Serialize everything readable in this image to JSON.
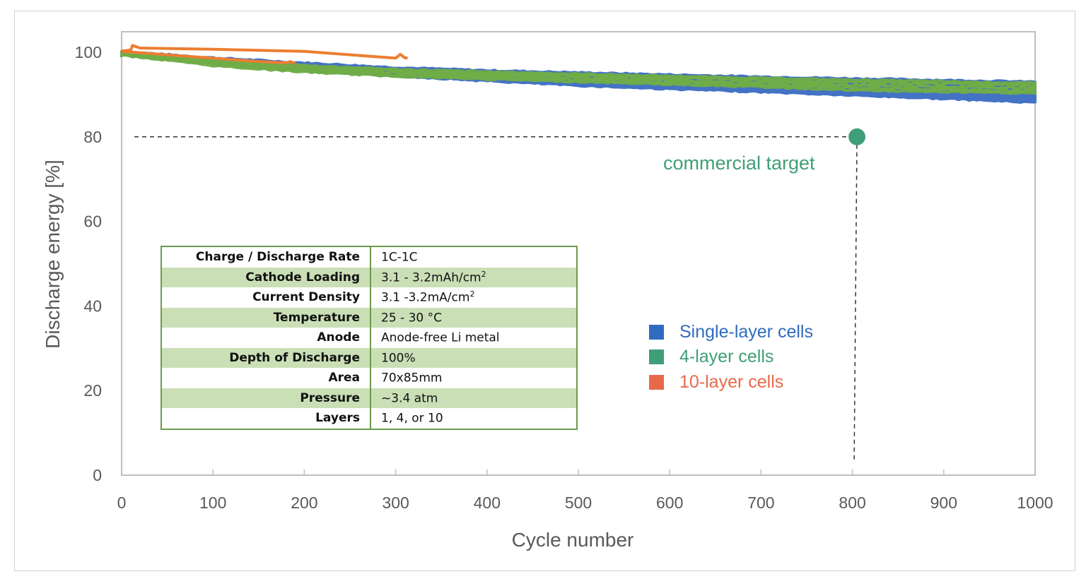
{
  "chart_data": {
    "type": "line",
    "xlabel": "Cycle number",
    "ylabel": "Discharge energy [%]",
    "xlim": [
      0,
      1000
    ],
    "ylim": [
      0,
      100
    ],
    "xticks": [
      0,
      100,
      200,
      300,
      400,
      500,
      600,
      700,
      800,
      900,
      1000
    ],
    "yticks": [
      0,
      20,
      40,
      60,
      80,
      100
    ],
    "grid": false,
    "legend_position": "right-center",
    "series": [
      {
        "name": "Single-layer cells",
        "color": "#4472c4",
        "legend_color": "#2f6cc0",
        "band": {
          "x": [
            0,
            100,
            200,
            300,
            400,
            500,
            600,
            700,
            800,
            900,
            1000
          ],
          "upper": [
            100,
            98.5,
            97.3,
            96.2,
            95.5,
            95,
            94.5,
            94,
            93.6,
            93.2,
            92.8
          ],
          "lower": [
            99.5,
            97.5,
            95.8,
            94.6,
            93.4,
            92.3,
            91.5,
            90.8,
            90,
            89.2,
            88.3
          ]
        }
      },
      {
        "name": "4-layer cells",
        "color": "#70ad47",
        "legend_color": "#3f9e78",
        "band": {
          "x": [
            0,
            100,
            200,
            300,
            400,
            500,
            600,
            700,
            800,
            900,
            1000
          ],
          "upper": [
            100,
            98,
            96.7,
            95.8,
            95.2,
            94.7,
            94.2,
            93.7,
            93.3,
            92.9,
            92.5
          ],
          "lower": [
            99.5,
            97,
            95.5,
            94.5,
            93.8,
            93.2,
            92.6,
            92,
            91.2,
            90.8,
            90.5
          ]
        }
      },
      {
        "name": "10-layer cells",
        "color": "#ed7d31",
        "legend_color": "#e8694a",
        "lines": [
          {
            "x": [
              0,
              10,
              12,
              20,
              100,
              200,
              300,
              305,
              310,
              313
            ],
            "y": [
              100.3,
              100.5,
              101.6,
              101.0,
              100.7,
              100.2,
              98.6,
              99.5,
              98.7,
              98.6
            ]
          },
          {
            "x": [
              0,
              50,
              100,
              150,
              180,
              185,
              190
            ],
            "y": [
              100.2,
              99.4,
              98.6,
              97.8,
              97.5,
              97.8,
              97.3
            ]
          }
        ]
      }
    ],
    "annotations": [
      {
        "text": "commercial target",
        "x": 805,
        "y": 80,
        "color": "#3f9e78",
        "marker": "circle",
        "dashed_guides": true
      }
    ]
  },
  "spec_table": [
    {
      "label": "Charge / Discharge Rate",
      "value": "1C-1C",
      "sup": ""
    },
    {
      "label": "Cathode Loading",
      "value": "3.1 - 3.2mAh/cm",
      "sup": "2"
    },
    {
      "label": "Current Density",
      "value": "3.1 -3.2mA/cm",
      "sup": "2"
    },
    {
      "label": "Temperature",
      "value": "25 - 30 °C",
      "sup": ""
    },
    {
      "label": "Anode",
      "value": "Anode-free Li metal",
      "sup": ""
    },
    {
      "label": "Depth of Discharge",
      "value": "100%",
      "sup": ""
    },
    {
      "label": "Area",
      "value": "70x85mm",
      "sup": ""
    },
    {
      "label": "Pressure",
      "value": "~3.4 atm",
      "sup": ""
    },
    {
      "label": "Layers",
      "value": "1, 4, or 10",
      "sup": ""
    }
  ]
}
